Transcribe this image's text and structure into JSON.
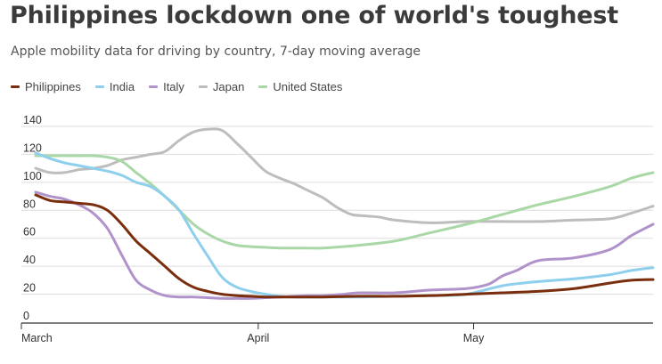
{
  "header": {
    "title": "Philippines lockdown one of world's toughest",
    "subtitle": "Apple mobility data for driving by country, 7-day moving average"
  },
  "colors": {
    "Philippines": "#7a2e0e",
    "India": "#8dcfec",
    "Italy": "#b193cb",
    "Japan": "#bdbdbd",
    "United States": "#a9d8a6"
  },
  "chart_data": {
    "type": "line",
    "title": "Philippines lockdown one of world's toughest",
    "subtitle": "Apple mobility data for driving by country, 7-day moving average",
    "xlabel": "",
    "ylabel": "",
    "x_tick_labels": [
      "March",
      "April",
      "May"
    ],
    "y_ticks": [
      0,
      20,
      40,
      60,
      80,
      100,
      120,
      140
    ],
    "ylim": [
      0,
      140
    ],
    "x_unit": "days since March 1",
    "x_range": [
      0,
      86
    ],
    "x_tick_positions": [
      0,
      31,
      61
    ],
    "grid": true,
    "legend_position": "top-left",
    "series": [
      {
        "name": "Philippines",
        "x": [
          0,
          2,
          4,
          6,
          8,
          10,
          12,
          14,
          16,
          18,
          20,
          22,
          24,
          26,
          28,
          30,
          32,
          34,
          36,
          38,
          40,
          45,
          50,
          55,
          60,
          65,
          70,
          75,
          80,
          83,
          86
        ],
        "values": [
          91,
          87,
          86,
          85,
          84,
          80,
          70,
          58,
          49,
          40,
          31,
          25,
          22,
          20,
          19,
          18.5,
          18,
          18,
          18,
          18,
          18,
          18.5,
          18.5,
          19,
          20,
          21,
          22,
          24,
          28,
          30,
          30.5
        ]
      },
      {
        "name": "India",
        "x": [
          0,
          2,
          4,
          6,
          8,
          10,
          12,
          14,
          16,
          18,
          20,
          22,
          24,
          26,
          28,
          30,
          32,
          34,
          36,
          38,
          40,
          45,
          50,
          55,
          60,
          65,
          70,
          75,
          80,
          83,
          86
        ],
        "values": [
          121,
          117,
          114,
          112,
          110,
          108,
          105,
          100,
          97,
          90,
          80,
          63,
          47,
          32,
          25,
          22,
          20,
          18.5,
          18,
          18,
          18,
          18,
          18.5,
          19,
          20,
          26,
          29,
          31,
          34,
          37,
          39
        ]
      },
      {
        "name": "Italy",
        "x": [
          0,
          2,
          4,
          6,
          8,
          10,
          12,
          14,
          16,
          18,
          20,
          22,
          24,
          26,
          28,
          30,
          32,
          34,
          36,
          38,
          40,
          43,
          45,
          50,
          55,
          60,
          63,
          65,
          67,
          70,
          75,
          80,
          83,
          86
        ],
        "values": [
          93,
          90,
          88,
          84,
          78,
          67,
          48,
          30,
          23,
          19,
          18,
          18,
          17.5,
          17,
          17,
          17,
          17.5,
          18,
          18.5,
          19,
          19,
          20,
          21,
          21,
          23,
          24,
          27,
          33,
          37,
          44,
          46,
          52,
          62,
          70
        ]
      },
      {
        "name": "Japan",
        "x": [
          0,
          2,
          4,
          6,
          8,
          10,
          12,
          14,
          16,
          18,
          20,
          22,
          24,
          26,
          28,
          30,
          32,
          34,
          36,
          38,
          40,
          42,
          44,
          46,
          48,
          50,
          55,
          60,
          65,
          70,
          75,
          80,
          83,
          86
        ],
        "values": [
          110,
          107,
          107,
          109,
          110,
          112,
          116,
          118,
          120,
          122,
          130,
          136,
          138,
          137,
          128,
          118,
          108,
          103,
          99,
          94,
          89,
          82,
          77,
          76,
          75,
          73,
          71,
          72,
          72,
          72,
          73,
          74,
          78,
          83
        ]
      },
      {
        "name": "United States",
        "x": [
          0,
          2,
          4,
          6,
          8,
          10,
          12,
          14,
          16,
          18,
          20,
          22,
          24,
          26,
          28,
          30,
          32,
          34,
          36,
          38,
          40,
          45,
          50,
          55,
          60,
          65,
          70,
          75,
          80,
          83,
          86
        ],
        "values": [
          119,
          119,
          119,
          119,
          119,
          118,
          115,
          107,
          99,
          90,
          80,
          70,
          63,
          58,
          55,
          54,
          53.5,
          53,
          53,
          53,
          53,
          55,
          58,
          64,
          70,
          77,
          84,
          90,
          97,
          103,
          107
        ]
      }
    ]
  }
}
